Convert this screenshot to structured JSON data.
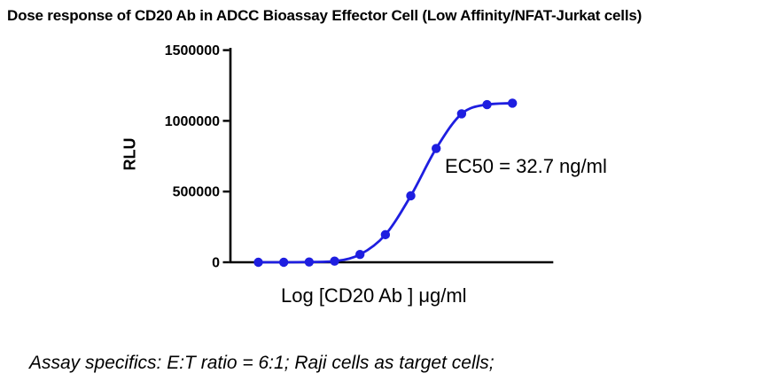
{
  "chart_data": {
    "type": "line",
    "title": "Dose response of CD20 Ab in ADCC Bioassay Effector Cell (Low Affinity/NFAT-Jurkat cells)",
    "xlabel": "Log [CD20 Ab ] μg/ml",
    "ylabel": "RLU",
    "annotation": "EC50 = 32.7 ng/ml",
    "footnote": "Assay specifics: E:T ratio = 6:1; Raji cells as target cells;",
    "ylim": [
      0,
      1500000
    ],
    "yticks": [
      0,
      500000,
      1000000,
      1500000
    ],
    "ytick_labels": [
      "0",
      "500000",
      "1000000",
      "1500000"
    ],
    "x_index": [
      1,
      2,
      3,
      4,
      5,
      6,
      7,
      8,
      9,
      10,
      11
    ],
    "xtick_labels": [],
    "grid": false,
    "legend": "none",
    "marker": "circle",
    "axis_color": "#000000",
    "series": [
      {
        "name": "CD20 Ab dose response",
        "color": "#1E1EE0",
        "values": [
          0,
          0,
          2000,
          8000,
          55000,
          195000,
          470000,
          805000,
          1050000,
          1115000,
          1125000
        ]
      }
    ]
  }
}
